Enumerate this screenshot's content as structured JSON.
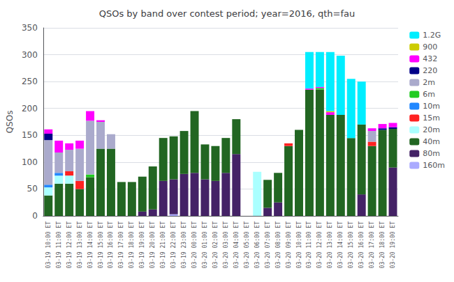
{
  "chart_data": {
    "type": "bar",
    "stacked": true,
    "title": "QSOs by band over contest period; year=2016, qth=fau",
    "ylabel": "QSOs",
    "categories": [
      "03-19 10:00 ET",
      "03-19 11:00 ET",
      "03-19 12:00 ET",
      "03-19 13:00 ET",
      "03-19 14:00 ET",
      "03-19 15:00 ET",
      "03-19 16:00 ET",
      "03-19 17:00 ET",
      "03-19 18:00 ET",
      "03-19 19:00 ET",
      "03-19 20:00 ET",
      "03-19 21:00 ET",
      "03-19 22:00 ET",
      "03-19 23:00 ET",
      "03-20 00:00 ET",
      "03-20 01:00 ET",
      "03-20 02:00 ET",
      "03-20 03:00 ET",
      "03-20 04:00 ET",
      "03-20 05:00 ET",
      "03-20 06:00 ET",
      "03-20 07:00 ET",
      "03-20 08:00 ET",
      "03-20 09:00 ET",
      "03-20 10:00 ET",
      "03-20 11:00 ET",
      "03-20 12:00 ET",
      "03-20 13:00 ET",
      "03-20 14:00 ET",
      "03-20 15:00 ET",
      "03-20 16:00 ET",
      "03-20 17:00 ET",
      "03-20 18:00 ET",
      "03-20 19:00 ET"
    ],
    "series": [
      {
        "name": "160m",
        "color": "#aaaaff",
        "values": [
          0,
          0,
          0,
          0,
          0,
          0,
          0,
          0,
          0,
          0,
          0,
          0,
          3,
          0,
          0,
          0,
          0,
          0,
          0,
          0,
          0,
          0,
          0,
          0,
          0,
          0,
          0,
          0,
          0,
          0,
          0,
          0,
          0,
          0
        ]
      },
      {
        "name": "80m",
        "color": "#442266",
        "values": [
          0,
          0,
          0,
          0,
          0,
          0,
          0,
          0,
          0,
          8,
          12,
          65,
          65,
          78,
          80,
          68,
          65,
          80,
          115,
          0,
          0,
          15,
          25,
          0,
          0,
          0,
          0,
          0,
          0,
          0,
          40,
          0,
          0,
          90
        ]
      },
      {
        "name": "40m",
        "color": "#226622",
        "values": [
          38,
          60,
          60,
          50,
          72,
          125,
          125,
          63,
          63,
          65,
          80,
          80,
          80,
          80,
          115,
          65,
          65,
          65,
          65,
          0,
          0,
          52,
          55,
          130,
          160,
          235,
          235,
          188,
          188,
          145,
          130,
          130,
          160,
          72
        ]
      },
      {
        "name": "20m",
        "color": "#aaffff",
        "values": [
          15,
          15,
          15,
          0,
          0,
          0,
          0,
          0,
          0,
          0,
          0,
          0,
          0,
          0,
          0,
          0,
          0,
          0,
          0,
          0,
          82,
          0,
          0,
          0,
          0,
          0,
          0,
          0,
          0,
          0,
          0,
          0,
          0,
          0
        ]
      },
      {
        "name": "15m",
        "color": "#ff2222",
        "values": [
          0,
          0,
          8,
          15,
          0,
          0,
          0,
          0,
          0,
          0,
          0,
          0,
          0,
          0,
          0,
          0,
          0,
          0,
          0,
          0,
          0,
          0,
          0,
          5,
          0,
          0,
          0,
          0,
          0,
          0,
          0,
          8,
          0,
          0
        ]
      },
      {
        "name": "10m",
        "color": "#2288ff",
        "values": [
          5,
          5,
          0,
          0,
          0,
          0,
          0,
          0,
          0,
          0,
          0,
          0,
          0,
          0,
          0,
          0,
          0,
          0,
          0,
          0,
          0,
          0,
          0,
          0,
          0,
          0,
          0,
          0,
          0,
          0,
          0,
          0,
          0,
          0
        ]
      },
      {
        "name": "6m",
        "color": "#22cc22",
        "values": [
          0,
          0,
          0,
          0,
          5,
          0,
          0,
          0,
          0,
          0,
          0,
          0,
          0,
          0,
          0,
          0,
          0,
          0,
          0,
          0,
          0,
          0,
          0,
          0,
          0,
          0,
          3,
          0,
          0,
          0,
          0,
          0,
          0,
          0
        ]
      },
      {
        "name": "2m",
        "color": "#aaaacc",
        "values": [
          83,
          38,
          40,
          60,
          100,
          50,
          27,
          0,
          0,
          0,
          0,
          0,
          0,
          0,
          0,
          0,
          0,
          0,
          0,
          0,
          0,
          0,
          0,
          0,
          0,
          0,
          0,
          0,
          0,
          0,
          0,
          20,
          0,
          0
        ]
      },
      {
        "name": "220",
        "color": "#000088",
        "values": [
          12,
          0,
          0,
          0,
          0,
          0,
          0,
          0,
          0,
          0,
          0,
          0,
          0,
          0,
          0,
          0,
          0,
          0,
          0,
          0,
          0,
          0,
          0,
          0,
          0,
          0,
          0,
          0,
          0,
          0,
          0,
          0,
          3,
          3
        ]
      },
      {
        "name": "432",
        "color": "#ff00ff",
        "values": [
          8,
          22,
          12,
          15,
          18,
          3,
          0,
          0,
          0,
          0,
          0,
          0,
          0,
          0,
          0,
          0,
          0,
          0,
          0,
          0,
          0,
          0,
          0,
          0,
          0,
          2,
          2,
          5,
          0,
          0,
          0,
          5,
          8,
          8
        ]
      },
      {
        "name": "900",
        "color": "#cccc00",
        "values": [
          0,
          0,
          0,
          0,
          0,
          0,
          0,
          0,
          0,
          0,
          0,
          0,
          0,
          0,
          0,
          0,
          0,
          0,
          0,
          0,
          0,
          0,
          0,
          0,
          0,
          0,
          0,
          2,
          0,
          0,
          0,
          0,
          0,
          0
        ]
      },
      {
        "name": "1.2G",
        "color": "#00eeff",
        "values": [
          0,
          0,
          0,
          0,
          0,
          0,
          0,
          0,
          0,
          0,
          0,
          0,
          0,
          0,
          0,
          0,
          0,
          0,
          0,
          0,
          0,
          0,
          0,
          0,
          0,
          68,
          65,
          110,
          110,
          110,
          80,
          0,
          0,
          0
        ]
      }
    ],
    "ylim": [
      0,
      350
    ],
    "yticks": [
      0,
      50,
      100,
      150,
      200,
      250,
      300,
      350
    ],
    "grid": true,
    "legend": "upper right"
  }
}
